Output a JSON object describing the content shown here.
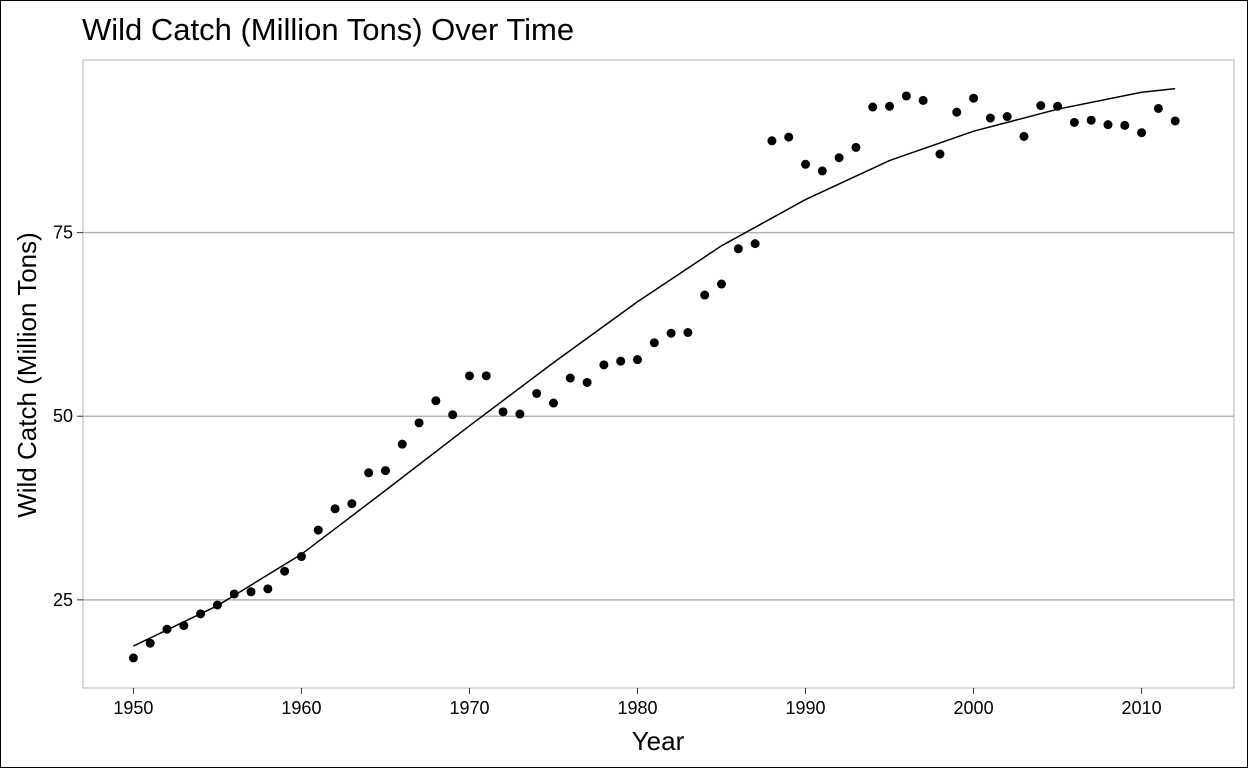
{
  "chart_data": {
    "type": "scatter",
    "title": "Wild Catch (Million Tons) Over Time",
    "xlabel": "Year",
    "ylabel": "Wild Catch (Million Tons)",
    "xlim": [
      1947,
      2015.5
    ],
    "ylim": [
      13,
      98.5
    ],
    "xticks": [
      1950,
      1960,
      1970,
      1980,
      1990,
      2000,
      2010
    ],
    "yticks": [
      25,
      50,
      75
    ],
    "grid": "horizontal",
    "legend": "none",
    "point_color": "#000000",
    "series": [
      {
        "type": "points",
        "x": [
          1950,
          1951,
          1952,
          1953,
          1954,
          1955,
          1956,
          1957,
          1958,
          1959,
          1960,
          1961,
          1962,
          1963,
          1964,
          1965,
          1966,
          1967,
          1968,
          1969,
          1970,
          1971,
          1972,
          1973,
          1974,
          1975,
          1976,
          1977,
          1978,
          1979,
          1980,
          1981,
          1982,
          1983,
          1984,
          1985,
          1986,
          1987,
          1988,
          1989,
          1990,
          1991,
          1992,
          1993,
          1994,
          1995,
          1996,
          1997,
          1998,
          1999,
          2000,
          2001,
          2002,
          2003,
          2004,
          2005,
          2006,
          2007,
          2008,
          2009,
          2010,
          2011,
          2012
        ],
        "y": [
          17.1,
          19.1,
          21.0,
          21.5,
          23.1,
          24.3,
          25.8,
          26.1,
          26.5,
          28.9,
          30.9,
          34.5,
          37.4,
          38.1,
          42.3,
          42.6,
          46.2,
          49.1,
          52.1,
          50.2,
          55.5,
          55.5,
          50.6,
          50.3,
          53.1,
          51.8,
          55.2,
          54.6,
          57.0,
          57.5,
          57.7,
          60.0,
          61.3,
          61.4,
          66.5,
          68.0,
          72.8,
          73.5,
          87.5,
          88.0,
          84.3,
          83.4,
          85.2,
          86.6,
          92.1,
          92.2,
          93.6,
          93.0,
          85.7,
          91.4,
          93.3,
          90.6,
          90.8,
          88.1,
          92.3,
          92.2,
          90.0,
          90.3,
          89.7,
          89.6,
          88.6,
          91.9,
          90.2
        ]
      },
      {
        "type": "smooth",
        "x": [
          1950,
          1955,
          1960,
          1965,
          1970,
          1975,
          1980,
          1985,
          1990,
          1995,
          2000,
          2005,
          2010,
          2012
        ],
        "y": [
          18.7,
          24.2,
          31.2,
          39.9,
          48.7,
          57.3,
          65.6,
          73.2,
          79.5,
          84.8,
          88.8,
          91.8,
          94.1,
          94.6
        ]
      }
    ]
  }
}
